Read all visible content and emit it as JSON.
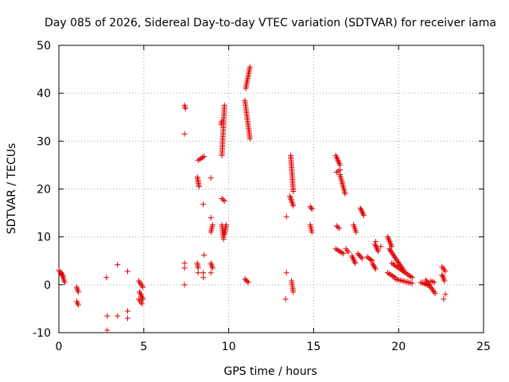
{
  "chart_data": {
    "type": "scatter",
    "title": "Day 085 of 2026, Sidereal Day-to-day VTEC variation (SDTVAR) for receiver iama",
    "xlabel": "GPS time / hours",
    "ylabel": "SDTVAR / TECUs",
    "xlim": [
      0,
      25
    ],
    "ylim": [
      -10,
      50
    ],
    "xticks": [
      "0",
      "5",
      "10",
      "15",
      "20",
      "25"
    ],
    "yticks": [
      "-10",
      "0",
      "10",
      "20",
      "30",
      "40",
      "50"
    ],
    "grid": true,
    "marker": "+",
    "color": "#e00000",
    "series": [
      {
        "name": "SDTVAR",
        "segments": [
          [
            0.0,
            3.0,
            0.25,
            1.8
          ],
          [
            0.15,
            2.5,
            0.35,
            0.5
          ],
          [
            1.05,
            -0.5,
            1.15,
            -1.5
          ],
          [
            1.05,
            -3.5,
            1.15,
            -4.2
          ],
          [
            4.7,
            0.8,
            4.95,
            -0.5
          ],
          [
            4.75,
            -1.5,
            4.95,
            -3.0
          ],
          [
            4.7,
            -3.0,
            4.9,
            -4.0
          ],
          [
            7.4,
            37.5,
            7.45,
            36.8
          ],
          [
            8.15,
            4.5,
            8.2,
            3.5
          ],
          [
            8.15,
            22.5,
            8.25,
            20.5
          ],
          [
            8.2,
            26.0,
            8.55,
            26.8
          ],
          [
            8.95,
            4.5,
            9.05,
            3.5
          ],
          [
            8.95,
            11.0,
            9.05,
            12.5
          ],
          [
            9.55,
            33.5,
            9.6,
            34.2
          ],
          [
            9.6,
            27.0,
            9.75,
            37.5
          ],
          [
            9.6,
            18.0,
            9.75,
            17.5
          ],
          [
            9.6,
            12.5,
            9.7,
            9.5
          ],
          [
            9.75,
            10.5,
            9.85,
            12.5
          ],
          [
            10.95,
            38.5,
            11.25,
            30.5
          ],
          [
            11.0,
            41.0,
            11.25,
            45.5
          ],
          [
            10.95,
            1.2,
            11.15,
            0.5
          ],
          [
            13.65,
            27.0,
            13.8,
            19.5
          ],
          [
            13.6,
            18.5,
            13.8,
            16.5
          ],
          [
            13.7,
            0.8,
            13.8,
            -1.5
          ],
          [
            14.8,
            16.3,
            14.9,
            15.8
          ],
          [
            14.8,
            12.5,
            14.9,
            11.0
          ],
          [
            16.3,
            27.0,
            16.55,
            25.0
          ],
          [
            16.35,
            23.5,
            16.55,
            24.0
          ],
          [
            16.55,
            23.0,
            16.85,
            19.0
          ],
          [
            16.35,
            12.3,
            16.5,
            11.8
          ],
          [
            16.3,
            7.5,
            16.75,
            6.5
          ],
          [
            16.9,
            7.5,
            17.05,
            6.8
          ],
          [
            17.35,
            12.5,
            17.5,
            11.0
          ],
          [
            17.25,
            6.0,
            17.45,
            4.5
          ],
          [
            17.6,
            6.5,
            17.85,
            5.5
          ],
          [
            17.75,
            16.0,
            17.95,
            14.5
          ],
          [
            18.15,
            5.8,
            18.45,
            5.0
          ],
          [
            18.45,
            4.5,
            18.65,
            3.3
          ],
          [
            18.6,
            8.5,
            18.8,
            7.0
          ],
          [
            19.35,
            10.0,
            19.6,
            8.0
          ],
          [
            19.45,
            7.5,
            20.3,
            3.0
          ],
          [
            19.6,
            4.5,
            20.8,
            1.5
          ],
          [
            19.35,
            2.5,
            19.8,
            1.5
          ],
          [
            19.8,
            1.2,
            20.8,
            0.3
          ],
          [
            21.3,
            0.5,
            21.8,
            -0.2
          ],
          [
            21.6,
            1.0,
            22.15,
            -1.8
          ],
          [
            21.9,
            0.8,
            22.1,
            0.5
          ],
          [
            22.55,
            3.8,
            22.75,
            2.8
          ],
          [
            22.6,
            1.8,
            22.7,
            0.8
          ]
        ],
        "points": [
          [
            2.8,
            1.5
          ],
          [
            2.85,
            -6.5
          ],
          [
            2.85,
            -9.5
          ],
          [
            3.45,
            4.2
          ],
          [
            3.45,
            -6.5
          ],
          [
            4.05,
            2.8
          ],
          [
            4.05,
            -5.5
          ],
          [
            4.05,
            -7.0
          ],
          [
            7.4,
            31.5
          ],
          [
            7.4,
            4.5
          ],
          [
            7.4,
            3.5
          ],
          [
            7.4,
            0.0
          ],
          [
            8.2,
            2.5
          ],
          [
            8.5,
            16.8
          ],
          [
            8.55,
            6.2
          ],
          [
            8.5,
            2.5
          ],
          [
            8.5,
            1.5
          ],
          [
            8.95,
            22.3
          ],
          [
            8.95,
            14.0
          ],
          [
            8.95,
            2.5
          ],
          [
            13.4,
            14.2
          ],
          [
            13.4,
            2.5
          ],
          [
            13.35,
            -3.0
          ],
          [
            18.65,
            9.0
          ],
          [
            18.95,
            8.0
          ],
          [
            22.55,
            2.0
          ],
          [
            22.75,
            -2.0
          ],
          [
            22.65,
            -3.0
          ]
        ]
      }
    ]
  }
}
